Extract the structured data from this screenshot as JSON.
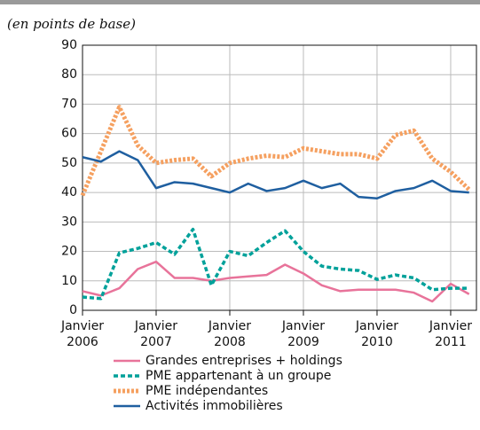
{
  "chart_data": {
    "type": "line",
    "subtitle": "(en points de base)",
    "x": [
      2006,
      2006.25,
      2006.5,
      2006.75,
      2007,
      2007.25,
      2007.5,
      2007.75,
      2008,
      2008.25,
      2008.5,
      2008.75,
      2009,
      2009.25,
      2009.5,
      2009.75,
      2010,
      2010.25,
      2010.5,
      2010.75,
      2011,
      2011.25
    ],
    "xlim": [
      2006,
      2011.35
    ],
    "xticks": [
      {
        "value": 2006,
        "label": "Janvier 2006"
      },
      {
        "value": 2007,
        "label": "Janvier 2007"
      },
      {
        "value": 2008,
        "label": "Janvier 2008"
      },
      {
        "value": 2009,
        "label": "Janvier 2009"
      },
      {
        "value": 2010,
        "label": "Janvier 2010"
      },
      {
        "value": 2011,
        "label": "Janvier 2011"
      }
    ],
    "ylim": [
      0,
      90
    ],
    "yticks": [
      0,
      10,
      20,
      30,
      40,
      50,
      60,
      70,
      80,
      90
    ],
    "grid": true,
    "series": [
      {
        "name": "Grandes entreprises + holdings",
        "color": "#e8739a",
        "style": "solid",
        "values": [
          6.5,
          5,
          7.5,
          14,
          16.5,
          11,
          11,
          10,
          11,
          11.5,
          12,
          15.5,
          12.5,
          8.5,
          6.5,
          7,
          7,
          7,
          6,
          3,
          9,
          5.5
        ]
      },
      {
        "name": "PME appartenant à un groupe",
        "color": "#00a19a",
        "style": "dashed",
        "values": [
          4.5,
          4,
          19.5,
          21,
          23,
          19,
          27.5,
          8.5,
          20,
          18.5,
          23,
          27,
          20,
          15,
          14,
          13.5,
          10.5,
          12,
          11,
          7,
          7.5,
          7.5
        ]
      },
      {
        "name": "PME indépendantes",
        "color": "#f5a060",
        "style": "dotted",
        "values": [
          39,
          54,
          69,
          56,
          50,
          51,
          51.5,
          45.5,
          50,
          51.5,
          52.5,
          52,
          55,
          54,
          53,
          53,
          51.5,
          59.5,
          61,
          51.5,
          47,
          41
        ]
      },
      {
        "name": "Activités immobilières",
        "color": "#1f5fa0",
        "style": "solid",
        "values": [
          52,
          50.5,
          54,
          51,
          41.5,
          43.5,
          43,
          41.5,
          40,
          43,
          40.5,
          41.5,
          44,
          41.5,
          43,
          38.5,
          38,
          40.5,
          41.5,
          44,
          40.5,
          40
        ]
      }
    ]
  }
}
